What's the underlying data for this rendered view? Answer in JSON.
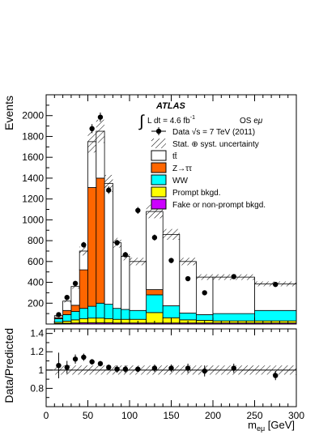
{
  "chart_data": [
    {
      "type": "bar",
      "panel": "main",
      "stacked": true,
      "ylabel": "Events",
      "ylim": [
        0,
        2200
      ],
      "xlim": [
        0,
        300
      ],
      "grid": false,
      "yticks": [
        200,
        400,
        600,
        800,
        1000,
        1200,
        1400,
        1600,
        1800,
        2000
      ],
      "header": {
        "experiment": "ATLAS",
        "lumi_int": "∫",
        "lumi_label": "L dt = 4.6 fb",
        "lumi_exp": "-1",
        "channel_main": "OS e",
        "channel_sub": "μ"
      },
      "legend_position": "top-right",
      "legend": [
        {
          "key": "data",
          "label": "Data √s = 7 TeV (2011)"
        },
        {
          "key": "unc",
          "label": "Stat. ⊕ syst. uncertainty"
        },
        {
          "key": "ttbar",
          "label": "tt̄"
        },
        {
          "key": "ztautau",
          "label": "Z→ττ"
        },
        {
          "key": "ww",
          "label": "WW"
        },
        {
          "key": "prompt",
          "label": "Prompt bkgd."
        },
        {
          "key": "fake",
          "label": "Fake or non-prompt bkgd."
        }
      ],
      "colors": {
        "ttbar": "#ffffff",
        "ztautau": "#ff6600",
        "ww": "#00ffff",
        "prompt": "#ffff00",
        "fake": "#cc00ff"
      },
      "bin_edges": [
        10,
        20,
        30,
        40,
        50,
        60,
        70,
        80,
        90,
        100,
        120,
        140,
        160,
        180,
        200,
        250,
        300
      ],
      "series": [
        {
          "key": "fake",
          "values": [
            5,
            8,
            10,
            12,
            12,
            12,
            12,
            10,
            10,
            10,
            10,
            10,
            10,
            10,
            10,
            10
          ]
        },
        {
          "key": "prompt",
          "values": [
            12,
            20,
            30,
            40,
            45,
            45,
            40,
            35,
            35,
            35,
            100,
            50,
            30,
            25,
            20,
            20
          ]
        },
        {
          "key": "ww",
          "values": [
            33,
            62,
            80,
            98,
            113,
            143,
            138,
            105,
            95,
            85,
            170,
            115,
            65,
            55,
            70,
            100
          ]
        },
        {
          "key": "ztautau",
          "values": [
            10,
            40,
            60,
            370,
            1140,
            1200,
            0,
            0,
            0,
            0,
            50,
            0,
            0,
            0,
            0,
            0
          ]
        },
        {
          "key": "ttbar",
          "values": [
            20,
            90,
            180,
            180,
            440,
            450,
            1160,
            630,
            510,
            470,
            750,
            685,
            495,
            360,
            350,
            255
          ]
        }
      ],
      "data_points": {
        "x": [
          15,
          25,
          35,
          45,
          55,
          65,
          75,
          85,
          95,
          110,
          130,
          150,
          170,
          190,
          225,
          275
        ],
        "y": [
          90,
          255,
          390,
          760,
          1875,
          1985,
          1285,
          780,
          665,
          1090,
          830,
          610,
          435,
          300,
          455,
          380
        ]
      }
    },
    {
      "type": "scatter",
      "panel": "ratio",
      "xlabel_main": "m",
      "xlabel_sub": "eμ",
      "xlabel_unit": " [GeV]",
      "ylabel": "Data/Predicted",
      "ylim": [
        0.6,
        1.45
      ],
      "xlim": [
        0,
        300
      ],
      "xticks": [
        0,
        50,
        100,
        150,
        200,
        250,
        300
      ],
      "xtick_labels": [
        "0",
        "50",
        "100",
        "150",
        "200",
        "250",
        "300"
      ],
      "yticks": [
        0.8,
        1,
        1.2,
        1.4
      ],
      "ytick_labels": [
        "0.8",
        "1",
        "1.2",
        "1.4"
      ],
      "x": [
        15,
        25,
        35,
        45,
        55,
        65,
        75,
        85,
        95,
        110,
        130,
        150,
        170,
        190,
        225,
        275
      ],
      "y": [
        1.05,
        1.03,
        1.12,
        1.14,
        1.09,
        1.07,
        1.03,
        1.01,
        1.01,
        1.01,
        1.02,
        1.02,
        1.02,
        0.99,
        1.02,
        0.94
      ],
      "err": [
        0.14,
        0.07,
        0.05,
        0.04,
        0.03,
        0.03,
        0.03,
        0.04,
        0.04,
        0.03,
        0.04,
        0.04,
        0.05,
        0.06,
        0.05,
        0.05
      ],
      "unc_band": 0.05
    }
  ]
}
